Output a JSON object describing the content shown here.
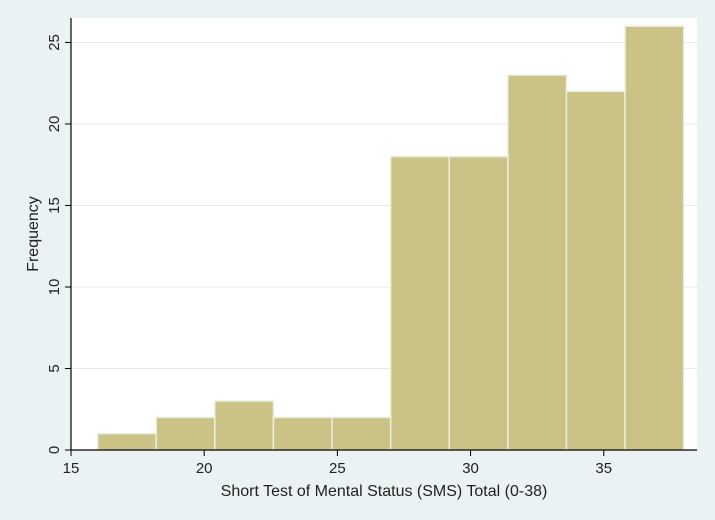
{
  "chart_data": {
    "type": "bar",
    "subtype": "histogram",
    "xlabel": "Short Test of Mental Status (SMS) Total (0-38)",
    "ylabel": "Frequency",
    "xlim": [
      15,
      38.5
    ],
    "ylim": [
      0,
      26.5
    ],
    "xticks": [
      15,
      20,
      25,
      30,
      35
    ],
    "yticks": [
      0,
      5,
      10,
      15,
      20,
      25
    ],
    "grid": "horizontal",
    "bins": [
      {
        "start": 16.0,
        "end": 18.2,
        "count": 1
      },
      {
        "start": 18.2,
        "end": 20.4,
        "count": 2
      },
      {
        "start": 20.4,
        "end": 22.6,
        "count": 3
      },
      {
        "start": 22.6,
        "end": 24.8,
        "count": 2
      },
      {
        "start": 24.8,
        "end": 27.0,
        "count": 2
      },
      {
        "start": 27.0,
        "end": 29.2,
        "count": 18
      },
      {
        "start": 29.2,
        "end": 31.4,
        "count": 18
      },
      {
        "start": 31.4,
        "end": 33.6,
        "count": 23
      },
      {
        "start": 33.6,
        "end": 35.8,
        "count": 22
      },
      {
        "start": 35.8,
        "end": 38.0,
        "count": 26
      }
    ],
    "colors": {
      "background": "#eaf2f3",
      "plot_area": "#ffffff",
      "bar_fill": "#cbc386",
      "bar_edge": "#e9efe0",
      "grid": "#e3ebec",
      "axis": "#000000"
    }
  }
}
